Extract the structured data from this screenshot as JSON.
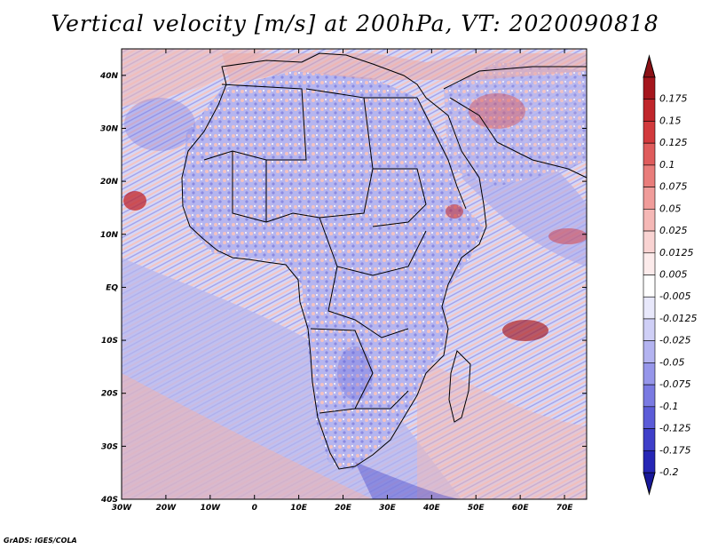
{
  "title": "Vertical velocity [m/s] at 200hPa, VT: 2020090818",
  "credit": "GrADS: IGES/COLA",
  "map": {
    "lon_range": [
      -30,
      75
    ],
    "lat_range": [
      -40,
      45
    ],
    "lat_ticks": [
      {
        "lat": 40,
        "label": "40N"
      },
      {
        "lat": 30,
        "label": "30N"
      },
      {
        "lat": 20,
        "label": "20N"
      },
      {
        "lat": 10,
        "label": "10N"
      },
      {
        "lat": 0,
        "label": "EQ"
      },
      {
        "lat": -10,
        "label": "10S"
      },
      {
        "lat": -20,
        "label": "20S"
      },
      {
        "lat": -30,
        "label": "30S"
      },
      {
        "lat": -40,
        "label": "40S"
      }
    ],
    "lon_ticks": [
      {
        "lon": -30,
        "label": "30W"
      },
      {
        "lon": -20,
        "label": "20W"
      },
      {
        "lon": -10,
        "label": "10W"
      },
      {
        "lon": 0,
        "label": "0"
      },
      {
        "lon": 10,
        "label": "10E"
      },
      {
        "lon": 20,
        "label": "20E"
      },
      {
        "lon": 30,
        "label": "30E"
      },
      {
        "lon": 40,
        "label": "40E"
      },
      {
        "lon": 50,
        "label": "50E"
      },
      {
        "lon": 60,
        "label": "60E"
      },
      {
        "lon": 70,
        "label": "70E"
      }
    ]
  },
  "colorbar": {
    "levels": [
      {
        "label": "0.175",
        "color": "#a5161d"
      },
      {
        "label": "0.15",
        "color": "#c0262b"
      },
      {
        "label": "0.125",
        "color": "#d23a3d"
      },
      {
        "label": "0.1",
        "color": "#df5c5c"
      },
      {
        "label": "0.075",
        "color": "#e97d7b"
      },
      {
        "label": "0.05",
        "color": "#f09c9a"
      },
      {
        "label": "0.025",
        "color": "#f5b8b6"
      },
      {
        "label": "0.0125",
        "color": "#f9d3d2"
      },
      {
        "label": "0.005",
        "color": "#fcebeb"
      },
      {
        "label": "-0.005",
        "color": "#ffffff"
      },
      {
        "label": "-0.0125",
        "color": "#e8e8fb"
      },
      {
        "label": "-0.025",
        "color": "#cfcff6"
      },
      {
        "label": "-0.05",
        "color": "#b3b3f0"
      },
      {
        "label": "-0.075",
        "color": "#9696ea"
      },
      {
        "label": "-0.1",
        "color": "#7a7ae2"
      },
      {
        "label": "-0.125",
        "color": "#5c5cd8"
      },
      {
        "label": "-0.175",
        "color": "#3f3fc9"
      },
      {
        "label": "-0.2",
        "color": "#2626b5"
      }
    ],
    "top_color": "#8b1116",
    "bottom_color": "#18189a"
  },
  "colors": {
    "background_field": "#c9c9f3",
    "positive": "#f1a9a7",
    "negative": "#8e8ee6",
    "coastline": "#000000"
  }
}
